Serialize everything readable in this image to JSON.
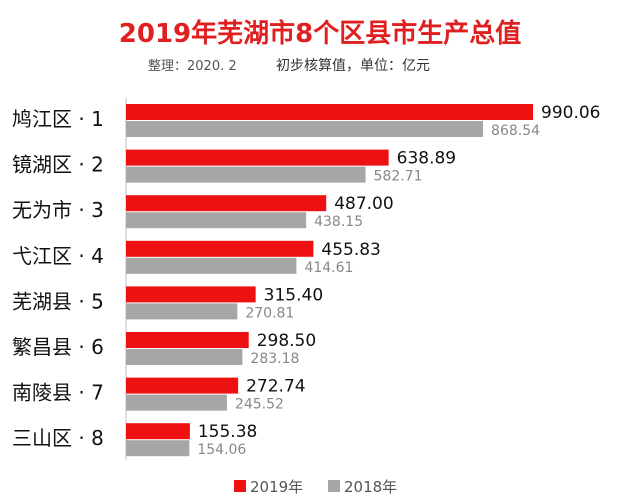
{
  "chart_data": {
    "type": "bar",
    "orientation": "horizontal",
    "title": "2019年芜湖市8个区县市生产总值",
    "subtitle_source": "整理：2020. 2",
    "subtitle_note": "初步核算值，单位：亿元",
    "categories": [
      "鸠江区 · 1",
      "镜湖区 · 2",
      "无为市 · 3",
      "弋江区 · 4",
      "芜湖县 · 5",
      "繁昌县 · 6",
      "南陵县 · 7",
      "三山区 · 8"
    ],
    "series": [
      {
        "name": "2019年",
        "color": "#ee1111",
        "values": [
          990.06,
          638.89,
          487.0,
          455.83,
          315.4,
          298.5,
          272.74,
          155.38
        ]
      },
      {
        "name": "2018年",
        "color": "#a6a6a6",
        "values": [
          868.54,
          582.71,
          438.15,
          414.61,
          270.81,
          283.18,
          245.52,
          154.06
        ]
      }
    ],
    "value_labels": [
      [
        "990.06",
        "638.89",
        "487.00",
        "455.83",
        "315.40",
        "298.50",
        "272.74",
        "155.38"
      ],
      [
        "868.54",
        "582.71",
        "438.15",
        "414.61",
        "270.81",
        "283.18",
        "245.52",
        "154.06"
      ]
    ],
    "xlim": [
      0,
      1000
    ],
    "legend": "bottom",
    "grid": false,
    "colors": {
      "title": "#e02020",
      "subtitle": "#333333",
      "category": "#111111",
      "value_2019": "#111111",
      "value_2018": "#888888",
      "axis": "#bfbfbf"
    }
  }
}
